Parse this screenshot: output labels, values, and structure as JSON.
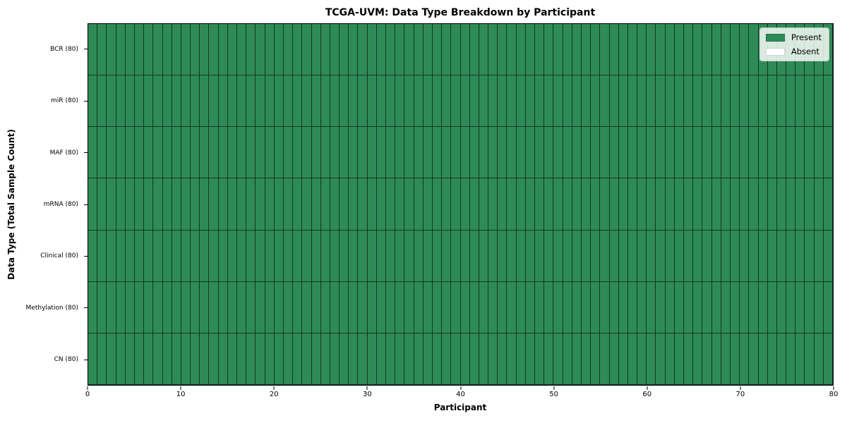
{
  "chart_data": {
    "type": "heatmap",
    "title": "TCGA-UVM: Data Type Breakdown by Participant",
    "xlabel": "Participant",
    "ylabel": "Data Type (Total Sample Count)",
    "xlim": [
      0,
      80
    ],
    "x_ticks": [
      0,
      10,
      20,
      30,
      40,
      50,
      60,
      70,
      80
    ],
    "participants": 80,
    "categories": [
      "BCR (80)",
      "miR (80)",
      "MAF (80)",
      "mRNA (80)",
      "Clinical (80)",
      "Methylation (80)",
      "CN (80)"
    ],
    "rows": [
      {
        "label": "BCR (80)",
        "data_type": "BCR",
        "total_samples": 80,
        "present_count": 80,
        "absent_count": 0
      },
      {
        "label": "miR (80)",
        "data_type": "miR",
        "total_samples": 80,
        "present_count": 80,
        "absent_count": 0
      },
      {
        "label": "MAF (80)",
        "data_type": "MAF",
        "total_samples": 80,
        "present_count": 80,
        "absent_count": 0
      },
      {
        "label": "mRNA (80)",
        "data_type": "mRNA",
        "total_samples": 80,
        "present_count": 80,
        "absent_count": 0
      },
      {
        "label": "Clinical (80)",
        "data_type": "Clinical",
        "total_samples": 80,
        "present_count": 80,
        "absent_count": 0
      },
      {
        "label": "Methylation (80)",
        "data_type": "Methylation",
        "total_samples": 80,
        "present_count": 80,
        "absent_count": 0
      },
      {
        "label": "CN (80)",
        "data_type": "CN",
        "total_samples": 80,
        "present_count": 80,
        "absent_count": 0
      }
    ],
    "legend": {
      "position": "upper right",
      "entries": [
        {
          "label": "Present",
          "color": "#2e8b57"
        },
        {
          "label": "Absent",
          "color": "#ffffff"
        }
      ]
    },
    "colors": {
      "present": "#2e8b57",
      "absent": "#ffffff",
      "cell_edge": "rgba(0,0,0,0.6)",
      "spine": "#000000"
    },
    "grid": true
  }
}
